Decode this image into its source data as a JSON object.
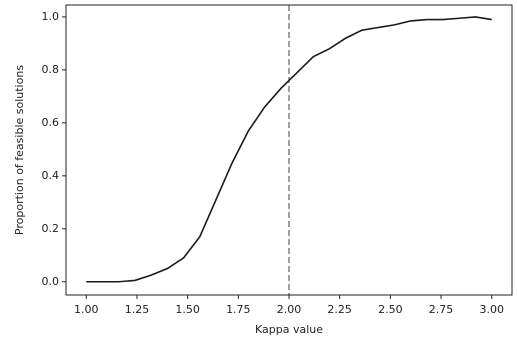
{
  "chart_data": {
    "type": "line",
    "x_label": "Kappa value",
    "y_label": "Proportion of feasible solutions",
    "x": [
      1.0,
      1.08,
      1.16,
      1.24,
      1.32,
      1.4,
      1.48,
      1.56,
      1.64,
      1.72,
      1.8,
      1.88,
      1.96,
      2.04,
      2.12,
      2.2,
      2.28,
      2.36,
      2.44,
      2.52,
      2.6,
      2.68,
      2.76,
      2.84,
      2.92,
      3.0
    ],
    "series": [
      {
        "color": "#1a1a1a",
        "values": [
          0,
          0,
          0,
          0.005,
          0.025,
          0.05,
          0.09,
          0.17,
          0.31,
          0.45,
          0.57,
          0.66,
          0.73,
          0.79,
          0.85,
          0.88,
          0.92,
          0.95,
          0.96,
          0.97,
          0.985,
          0.99,
          0.99,
          0.995,
          1.0,
          0.99
        ]
      }
    ],
    "vline": {
      "x": 2.0,
      "color": "#888888",
      "dashed": true
    },
    "xlim": [
      0.9,
      3.1
    ],
    "ylim": [
      -0.05,
      1.045
    ],
    "xticks": [
      {
        "value": 1.0,
        "label": "1.00"
      },
      {
        "value": 1.25,
        "label": "1.25"
      },
      {
        "value": 1.5,
        "label": "1.50"
      },
      {
        "value": 1.75,
        "label": "1.75"
      },
      {
        "value": 2.0,
        "label": "2.00"
      },
      {
        "value": 2.25,
        "label": "2.25"
      },
      {
        "value": 2.5,
        "label": "2.50"
      },
      {
        "value": 2.75,
        "label": "2.75"
      },
      {
        "value": 3.0,
        "label": "3.00"
      }
    ],
    "yticks": [
      {
        "value": 0,
        "label": "0.0"
      },
      {
        "value": 0.2,
        "label": "0.2"
      },
      {
        "value": 0.4,
        "label": "0.4"
      },
      {
        "value": 0.6,
        "label": "0.6"
      },
      {
        "value": 0.8,
        "label": "0.8"
      },
      {
        "value": 1.0,
        "label": "1.0"
      }
    ],
    "grid": false
  }
}
